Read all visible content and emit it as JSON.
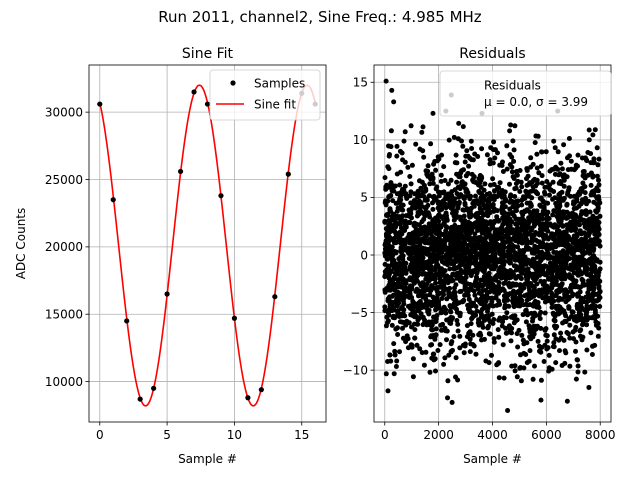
{
  "figure": {
    "suptitle": "Run 2011, channel2, Sine Freq.: 4.985 MHz"
  },
  "chart_data": [
    {
      "type": "line",
      "title": "Sine Fit",
      "xlabel": "Sample #",
      "ylabel": "ADC Counts",
      "xlim": [
        -0.8,
        16.8
      ],
      "ylim": [
        7000,
        33500
      ],
      "xticks": [
        0,
        5,
        10,
        15
      ],
      "yticks": [
        10000,
        15000,
        20000,
        25000,
        30000
      ],
      "xtick_labels": [
        "0",
        "5",
        "10",
        "15"
      ],
      "ytick_labels": [
        "10000",
        "15000",
        "20000",
        "25000",
        "30000"
      ],
      "grid": true,
      "legend_position": "top-right",
      "fit": {
        "offset": 20100,
        "amplitude": 11900,
        "period": 8.0,
        "peak_x": 7.4
      },
      "series": [
        {
          "name": "Samples",
          "kind": "scatter",
          "color": "#000000",
          "x": [
            0,
            1,
            2,
            3,
            4,
            5,
            6,
            7,
            8,
            9,
            10,
            11,
            12,
            13,
            14,
            15,
            16
          ],
          "values": [
            30600,
            23500,
            14500,
            8700,
            9500,
            16500,
            25600,
            31500,
            30600,
            23800,
            14700,
            8800,
            9400,
            16300,
            25400,
            31400,
            30600
          ]
        },
        {
          "name": "Sine fit",
          "kind": "line",
          "color": "#ff0000"
        }
      ]
    },
    {
      "type": "scatter",
      "title": "Residuals",
      "xlabel": "Sample #",
      "ylabel": "",
      "xlim": [
        -400,
        8400
      ],
      "ylim": [
        -14.5,
        16.5
      ],
      "xticks": [
        0,
        2000,
        4000,
        6000,
        8000
      ],
      "yticks": [
        -10,
        -5,
        0,
        5,
        10,
        15
      ],
      "xtick_labels": [
        "0",
        "2000",
        "4000",
        "6000",
        "8000"
      ],
      "ytick_labels": [
        "−10",
        "−5",
        "0",
        "5",
        "10",
        "15"
      ],
      "grid": true,
      "legend_position": "top-right",
      "legend_label": "Residuals",
      "legend_stats": "μ = 0.0, σ = 3.99",
      "stats": {
        "count": 8192,
        "mean": 0.0,
        "std": 3.99
      },
      "series": [
        {
          "name": "Residuals",
          "color": "#000000",
          "x_range": [
            0,
            8000
          ],
          "outliers": [
            {
              "x": 50,
              "y": 15.1
            },
            {
              "x": 330,
              "y": 13.3
            },
            {
              "x": 260,
              "y": 14.3
            },
            {
              "x": 1790,
              "y": 12.3
            },
            {
              "x": 2470,
              "y": 13.9
            },
            {
              "x": 2270,
              "y": 12.5
            },
            {
              "x": 3610,
              "y": 12.3
            },
            {
              "x": 6420,
              "y": 12.5
            },
            {
              "x": 4560,
              "y": -13.5
            },
            {
              "x": 2500,
              "y": -12.8
            },
            {
              "x": 5800,
              "y": -12.6
            },
            {
              "x": 6780,
              "y": -12.7
            },
            {
              "x": 2330,
              "y": -12.4
            },
            {
              "x": 120,
              "y": -11.8
            },
            {
              "x": 7580,
              "y": -11.5
            }
          ]
        }
      ]
    }
  ]
}
